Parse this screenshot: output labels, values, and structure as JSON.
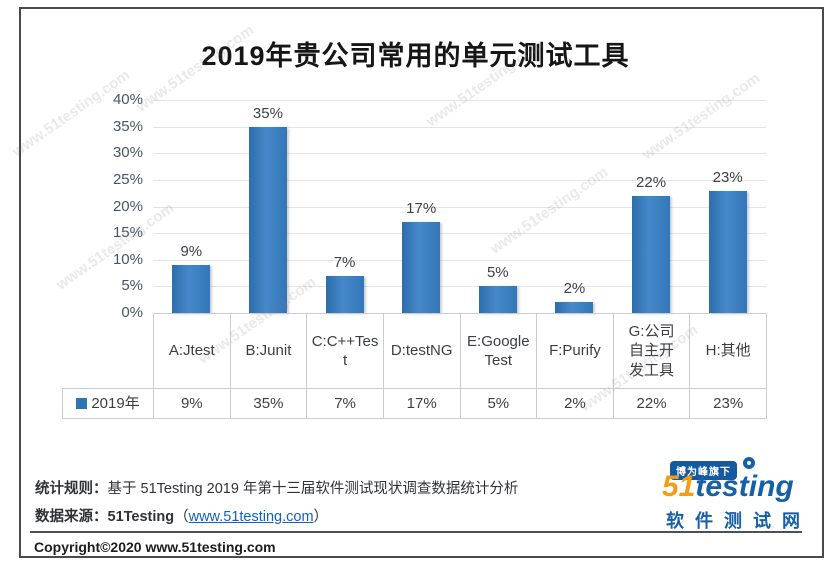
{
  "title": "2019年贵公司常用的单元测试工具",
  "watermark": "www.51testing.com",
  "chart_data": {
    "type": "bar",
    "title": "2019年贵公司常用的单元测试工具",
    "categories": [
      "A:Jtest",
      "B:Junit",
      "C:C++Test",
      "D:testNG",
      "E:Google Test",
      "F:Purify",
      "G:公司自主开发工具",
      "H:其他"
    ],
    "category_display": [
      "A:Jtest",
      "B:Junit",
      "C:C++Tes\nt",
      "D:testNG",
      "E:Google\nTest",
      "F:Purify",
      "G:公司\n自主开\n发工具",
      "H:其他"
    ],
    "series": [
      {
        "name": "2019年",
        "values": [
          9,
          35,
          7,
          17,
          5,
          2,
          22,
          23
        ]
      }
    ],
    "values": [
      9,
      35,
      7,
      17,
      5,
      2,
      22,
      23
    ],
    "value_labels": [
      "9%",
      "35%",
      "7%",
      "17%",
      "5%",
      "2%",
      "22%",
      "23%"
    ],
    "xlabel": "",
    "ylabel": "",
    "ylim": [
      0,
      40
    ],
    "ytick_step": 5,
    "ytick_labels": [
      "0%",
      "5%",
      "10%",
      "15%",
      "20%",
      "25%",
      "30%",
      "35%",
      "40%"
    ],
    "grid": true,
    "legend_position": "table-bottom",
    "bar_color": "#3a7ec0",
    "legend_marker_color": "#2e75b6"
  },
  "footer": {
    "rule_label": "统计规则：",
    "rule_text": "基于 51Testing 2019 年第十三届软件测试现状调查数据统计分析",
    "source_label": "数据来源：",
    "source_name": "51Testing",
    "paren_open": "（",
    "source_link": "www.51testing.com",
    "paren_close": "）",
    "copyright": "Copyright©2020 www.51testing.com"
  },
  "logo": {
    "badge": "博为峰旗下",
    "brand_prefix": "51",
    "brand_mid": "test",
    "brand_i": "i",
    "brand_suffix": "ng",
    "subtitle": "软件测试网",
    "orange": "#f59c16",
    "blue": "#1660a7"
  },
  "colors": {
    "link": "#0f62c0",
    "grid": "#e3e4e6",
    "axis_text": "#4b5462",
    "frame_border": "#4a4a4a"
  }
}
